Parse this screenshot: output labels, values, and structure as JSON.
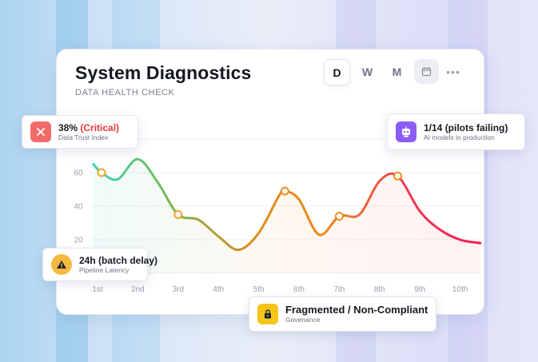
{
  "header": {
    "title": "System Diagnostics",
    "subtitle": "DATA HEALTH CHECK"
  },
  "range_tabs": [
    {
      "label": "D",
      "active": true
    },
    {
      "label": "W",
      "active": false
    },
    {
      "label": "M",
      "active": false
    }
  ],
  "toolbar": {
    "calendar_icon": "calendar-icon",
    "more_icon": "more-icon"
  },
  "metrics": {
    "trust": {
      "value": "38%",
      "flag": "(Critical)",
      "label": "Data Trust Index",
      "icon": "close-icon",
      "color": "#f26b6b"
    },
    "ai": {
      "value": "1/14 (pilots failing)",
      "label": "AI models in production",
      "icon": "robot-icon",
      "color": "#8b5cf6"
    },
    "pipeline": {
      "value": "24h (batch delay)",
      "label": "Pipeline Latency",
      "icon": "warning-icon",
      "color": "#f5b942"
    },
    "governance": {
      "value": "Fragmented / Non-Compliant",
      "label": "Govenance",
      "icon": "lock-icon",
      "color": "#f5c518"
    }
  },
  "chart_data": {
    "type": "line",
    "categories": [
      "1st",
      "2nd",
      "3rd",
      "4th",
      "5th",
      "6th",
      "7th",
      "8th",
      "9th",
      "10th"
    ],
    "y_ticks": [
      20,
      40,
      60
    ],
    "ylim": [
      0,
      80
    ],
    "series": [
      {
        "x": [
          0.9,
          1.1,
          1.5,
          2.0,
          2.5,
          3.0,
          3.5,
          4.0,
          4.5,
          5.0,
          5.5,
          5.65,
          6.0,
          6.5,
          7.0,
          7.5,
          8.0,
          8.45,
          9.0,
          9.5,
          10.0,
          10.5
        ],
        "values": [
          65,
          60,
          56,
          68,
          54,
          35,
          32,
          22,
          14,
          24,
          46,
          49,
          44,
          23,
          34,
          35,
          55,
          58,
          37,
          26,
          20,
          18
        ],
        "markers": [
          1,
          5,
          11,
          14,
          17
        ]
      }
    ],
    "grid": true,
    "gradient": [
      "#3ad6b5",
      "#7ab84d",
      "#d98b1f",
      "#ef8a18",
      "#f23a52",
      "#f5194f"
    ]
  }
}
